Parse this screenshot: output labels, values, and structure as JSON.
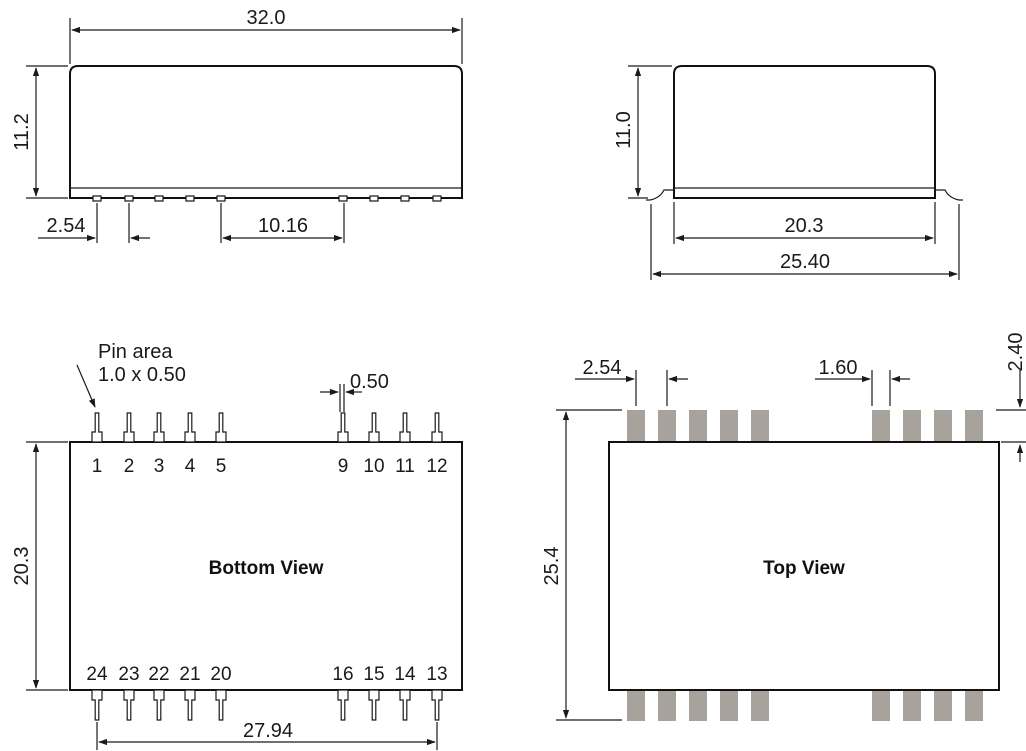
{
  "side_view": {
    "length": "32.0",
    "height": "11.2",
    "pitch": "2.54",
    "group_gap": "10.16"
  },
  "end_view": {
    "height": "11.0",
    "body_width": "20.3",
    "overall_width": "25.40"
  },
  "bottom_view": {
    "title": "Bottom View",
    "pin_area_label_1": "Pin area",
    "pin_area_label_2": "1.0 x 0.50",
    "pin_width": "0.50",
    "body_height": "20.3",
    "row_span": "27.94",
    "top_pins": [
      "1",
      "2",
      "3",
      "4",
      "5",
      "9",
      "10",
      "11",
      "12"
    ],
    "bottom_pins": [
      "24",
      "23",
      "22",
      "21",
      "20",
      "16",
      "15",
      "14",
      "13"
    ]
  },
  "top_view": {
    "title": "Top View",
    "pitch": "2.54",
    "pad_width": "1.60",
    "pad_length": "2.40",
    "overall_height": "25.4"
  },
  "colors": {
    "line": "#1a1a1a",
    "pad_fill": "#a8a29c"
  }
}
